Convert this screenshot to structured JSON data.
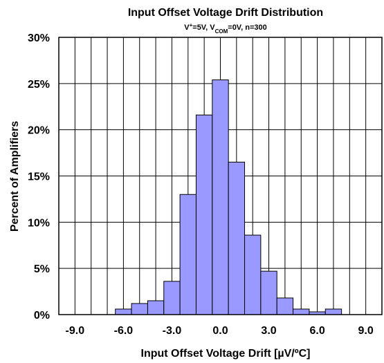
{
  "chart_data": {
    "type": "bar",
    "title": "Input Offset Voltage Drift Distribution",
    "subtitle": {
      "parts": [
        {
          "text": "V",
          "sup": false,
          "sub": false
        },
        {
          "text": "+",
          "sup": true,
          "sub": false
        },
        {
          "text": "=5V, V",
          "sup": false,
          "sub": false
        },
        {
          "text": "COM",
          "sup": false,
          "sub": true
        },
        {
          "text": "=0V, n=300",
          "sup": false,
          "sub": false
        }
      ]
    },
    "xlabel": "Input Offset Voltage Drift [µV/ºC]",
    "ylabel": "Percent of Amplifiers",
    "xlim": [
      -10,
      10
    ],
    "ylim": [
      0,
      30
    ],
    "x_ticks": [
      {
        "value": -9,
        "label": "-9.0"
      },
      {
        "value": -6,
        "label": "-6.0"
      },
      {
        "value": -3,
        "label": "-3.0"
      },
      {
        "value": 0,
        "label": "0.0"
      },
      {
        "value": 3,
        "label": "3.0"
      },
      {
        "value": 6,
        "label": "6.0"
      },
      {
        "value": 9,
        "label": "9.0"
      }
    ],
    "y_ticks": [
      {
        "value": 0,
        "label": "0%"
      },
      {
        "value": 5,
        "label": "5%"
      },
      {
        "value": 10,
        "label": "10%"
      },
      {
        "value": 15,
        "label": "15%"
      },
      {
        "value": 20,
        "label": "20%"
      },
      {
        "value": 25,
        "label": "25%"
      },
      {
        "value": 30,
        "label": "30%"
      }
    ],
    "grid": true,
    "bar_color": "#9999ff",
    "bin_width": 1,
    "bins": [
      {
        "x": -6,
        "value": 0.6
      },
      {
        "x": -5,
        "value": 1.2
      },
      {
        "x": -4,
        "value": 1.5
      },
      {
        "x": -3,
        "value": 3.6
      },
      {
        "x": -2,
        "value": 13.0
      },
      {
        "x": -1,
        "value": 21.6
      },
      {
        "x": 0,
        "value": 25.4
      },
      {
        "x": 1,
        "value": 16.5
      },
      {
        "x": 2,
        "value": 8.6
      },
      {
        "x": 3,
        "value": 4.7
      },
      {
        "x": 4,
        "value": 1.8
      },
      {
        "x": 5,
        "value": 0.6
      },
      {
        "x": 6,
        "value": 0.3
      },
      {
        "x": 7,
        "value": 0.6
      }
    ]
  }
}
